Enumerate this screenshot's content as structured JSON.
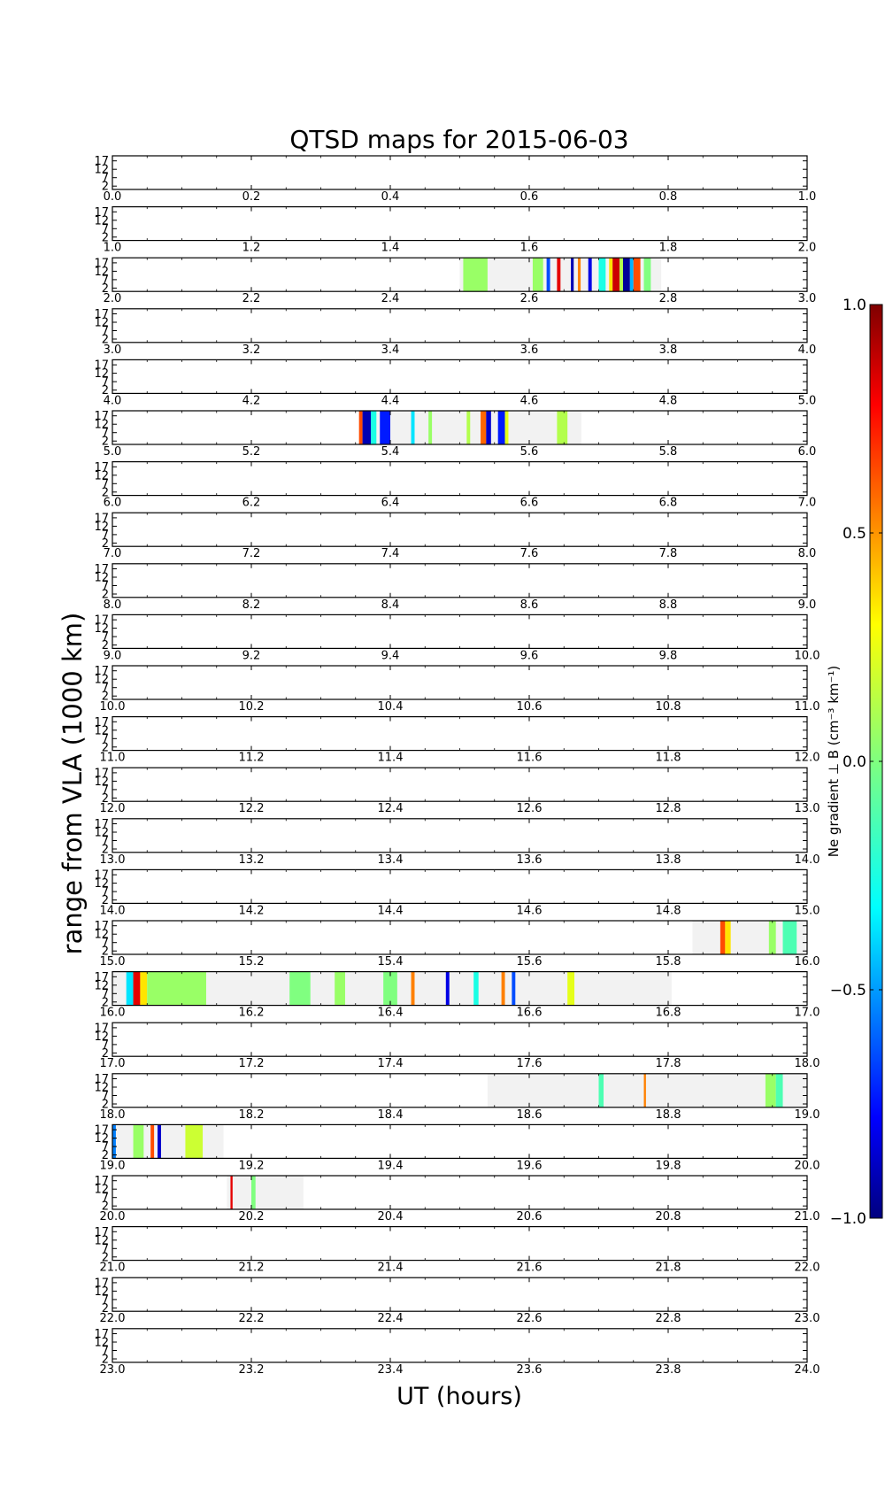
{
  "chart_data": {
    "type": "heatmap",
    "title": "QTSD maps for 2015-06-03",
    "xlabel": "UT (hours)",
    "ylabel": "range from VLA (1000 km)",
    "yticks": [
      "17",
      "12",
      "7",
      "2"
    ],
    "ylim": [
      0,
      20
    ],
    "grid": false,
    "colorbar": {
      "label": "Ne gradient ⊥ B (cm⁻³ km⁻¹)",
      "range": [
        -1.0,
        1.0
      ],
      "ticks": [
        "1.0",
        "0.5",
        "0.0",
        "−0.5",
        "−1.0"
      ],
      "colormap": "jet",
      "colors": [
        "#00007f",
        "#0000ff",
        "#007fff",
        "#00ffff",
        "#7fff7f",
        "#ffff00",
        "#ff7f00",
        "#ff0000",
        "#7f0000"
      ]
    },
    "panels": [
      {
        "hour": 0,
        "xticks": [
          "0.0",
          "0.2",
          "0.4",
          "0.6",
          "0.8",
          "1.0"
        ],
        "coverage": [],
        "features": []
      },
      {
        "hour": 1,
        "xticks": [
          "1.0",
          "1.2",
          "1.4",
          "1.6",
          "1.8",
          "2.0"
        ],
        "coverage": [],
        "features": []
      },
      {
        "hour": 2,
        "xticks": [
          "2.0",
          "2.2",
          "2.4",
          "2.6",
          "2.8",
          "3.0"
        ],
        "coverage": [
          [
            2.5,
            2.79
          ]
        ],
        "features": [
          {
            "t0": 2.505,
            "t1": 2.54,
            "v": 0.05
          },
          {
            "t0": 2.605,
            "t1": 2.62,
            "v": 0.05
          },
          {
            "t0": 2.625,
            "t1": 2.63,
            "v": -0.6
          },
          {
            "t0": 2.64,
            "t1": 2.645,
            "v": 0.8
          },
          {
            "t0": 2.66,
            "t1": 2.664,
            "v": -0.9
          },
          {
            "t0": 2.67,
            "t1": 2.674,
            "v": 0.5
          },
          {
            "t0": 2.685,
            "t1": 2.69,
            "v": -0.8
          },
          {
            "t0": 2.7,
            "t1": 2.71,
            "v": -0.2
          },
          {
            "t0": 2.715,
            "t1": 2.72,
            "v": 0.3
          },
          {
            "t0": 2.72,
            "t1": 2.73,
            "v": 0.85
          },
          {
            "t0": 2.73,
            "t1": 2.735,
            "v": 0.1
          },
          {
            "t0": 2.735,
            "t1": 2.745,
            "v": -0.95
          },
          {
            "t0": 2.745,
            "t1": 2.75,
            "v": -0.4
          },
          {
            "t0": 2.75,
            "t1": 2.76,
            "v": 0.6
          },
          {
            "t0": 2.765,
            "t1": 2.775,
            "v": 0.0
          }
        ]
      },
      {
        "hour": 3,
        "xticks": [
          "3.0",
          "3.2",
          "3.4",
          "3.6",
          "3.8",
          "4.0"
        ],
        "coverage": [],
        "features": []
      },
      {
        "hour": 4,
        "xticks": [
          "4.0",
          "4.2",
          "4.4",
          "4.6",
          "4.8",
          "5.0"
        ],
        "coverage": [],
        "features": []
      },
      {
        "hour": 5,
        "xticks": [
          "5.0",
          "5.2",
          "5.4",
          "5.6",
          "5.8",
          "6.0"
        ],
        "coverage": [
          [
            5.355,
            5.675
          ]
        ],
        "features": [
          {
            "t0": 5.355,
            "t1": 5.36,
            "v": 0.6
          },
          {
            "t0": 5.36,
            "t1": 5.372,
            "v": -0.9
          },
          {
            "t0": 5.372,
            "t1": 5.38,
            "v": -0.2
          },
          {
            "t0": 5.385,
            "t1": 5.4,
            "v": -0.7
          },
          {
            "t0": 5.43,
            "t1": 5.435,
            "v": -0.3
          },
          {
            "t0": 5.455,
            "t1": 5.46,
            "v": 0.05
          },
          {
            "t0": 5.51,
            "t1": 5.515,
            "v": 0.1
          },
          {
            "t0": 5.53,
            "t1": 5.538,
            "v": 0.55
          },
          {
            "t0": 5.538,
            "t1": 5.545,
            "v": -0.85
          },
          {
            "t0": 5.555,
            "t1": 5.565,
            "v": -0.7
          },
          {
            "t0": 5.565,
            "t1": 5.57,
            "v": 0.2
          },
          {
            "t0": 5.64,
            "t1": 5.655,
            "v": 0.1
          }
        ]
      },
      {
        "hour": 6,
        "xticks": [
          "6.0",
          "6.2",
          "6.4",
          "6.6",
          "6.8",
          "7.0"
        ],
        "coverage": [],
        "features": []
      },
      {
        "hour": 7,
        "xticks": [
          "7.0",
          "7.2",
          "7.4",
          "7.6",
          "7.8",
          "8.0"
        ],
        "coverage": [],
        "features": []
      },
      {
        "hour": 8,
        "xticks": [
          "8.0",
          "8.2",
          "8.4",
          "8.6",
          "8.8",
          "9.0"
        ],
        "coverage": [],
        "features": []
      },
      {
        "hour": 9,
        "xticks": [
          "9.0",
          "9.2",
          "9.4",
          "9.6",
          "9.8",
          "10.0"
        ],
        "coverage": [],
        "features": []
      },
      {
        "hour": 10,
        "xticks": [
          "10.0",
          "10.2",
          "10.4",
          "10.6",
          "10.8",
          "11.0"
        ],
        "coverage": [],
        "features": []
      },
      {
        "hour": 11,
        "xticks": [
          "11.0",
          "11.2",
          "11.4",
          "11.6",
          "11.8",
          "12.0"
        ],
        "coverage": [],
        "features": []
      },
      {
        "hour": 12,
        "xticks": [
          "12.0",
          "12.2",
          "12.4",
          "12.6",
          "12.8",
          "13.0"
        ],
        "coverage": [],
        "features": []
      },
      {
        "hour": 13,
        "xticks": [
          "13.0",
          "13.2",
          "13.4",
          "13.6",
          "13.8",
          "14.0"
        ],
        "coverage": [],
        "features": []
      },
      {
        "hour": 14,
        "xticks": [
          "14.0",
          "14.2",
          "14.4",
          "14.6",
          "14.8",
          "15.0"
        ],
        "coverage": [],
        "features": []
      },
      {
        "hour": 15,
        "xticks": [
          "15.0",
          "15.2",
          "15.4",
          "15.6",
          "15.8",
          "16.0"
        ],
        "coverage": [
          [
            15.835,
            16.0
          ]
        ],
        "features": [
          {
            "t0": 15.875,
            "t1": 15.882,
            "v": 0.6
          },
          {
            "t0": 15.882,
            "t1": 15.89,
            "v": 0.3
          },
          {
            "t0": 15.945,
            "t1": 15.955,
            "v": 0.05
          },
          {
            "t0": 15.965,
            "t1": 15.985,
            "v": -0.1
          }
        ]
      },
      {
        "hour": 16,
        "xticks": [
          "16.0",
          "16.2",
          "16.4",
          "16.6",
          "16.8",
          "17.0"
        ],
        "coverage": [
          [
            16.0,
            16.805
          ]
        ],
        "features": [
          {
            "t0": 16.02,
            "t1": 16.03,
            "v": -0.3
          },
          {
            "t0": 16.03,
            "t1": 16.04,
            "v": 0.8
          },
          {
            "t0": 16.04,
            "t1": 16.05,
            "v": 0.3
          },
          {
            "t0": 16.05,
            "t1": 16.135,
            "v": 0.05
          },
          {
            "t0": 16.255,
            "t1": 16.285,
            "v": 0.0
          },
          {
            "t0": 16.32,
            "t1": 16.335,
            "v": 0.05
          },
          {
            "t0": 16.39,
            "t1": 16.41,
            "v": 0.0
          },
          {
            "t0": 16.43,
            "t1": 16.435,
            "v": 0.5
          },
          {
            "t0": 16.48,
            "t1": 16.485,
            "v": -0.8
          },
          {
            "t0": 16.52,
            "t1": 16.527,
            "v": -0.2
          },
          {
            "t0": 16.56,
            "t1": 16.565,
            "v": 0.5
          },
          {
            "t0": 16.575,
            "t1": 16.58,
            "v": -0.6
          },
          {
            "t0": 16.655,
            "t1": 16.665,
            "v": 0.2
          }
        ]
      },
      {
        "hour": 17,
        "xticks": [
          "17.0",
          "17.2",
          "17.4",
          "17.6",
          "17.8",
          "18.0"
        ],
        "coverage": [],
        "features": []
      },
      {
        "hour": 18,
        "xticks": [
          "18.0",
          "18.2",
          "18.4",
          "18.6",
          "18.8",
          "19.0"
        ],
        "coverage": [
          [
            18.54,
            19.0
          ]
        ],
        "features": [
          {
            "t0": 18.7,
            "t1": 18.707,
            "v": -0.1
          },
          {
            "t0": 18.765,
            "t1": 18.768,
            "v": 0.5
          },
          {
            "t0": 18.94,
            "t1": 18.955,
            "v": 0.05
          },
          {
            "t0": 18.955,
            "t1": 18.965,
            "v": -0.1
          }
        ]
      },
      {
        "hour": 19,
        "xticks": [
          "19.0",
          "19.2",
          "19.4",
          "19.6",
          "19.8",
          "20.0"
        ],
        "coverage": [
          [
            19.0,
            19.16
          ]
        ],
        "features": [
          {
            "t0": 19.0,
            "t1": 19.005,
            "v": -0.5
          },
          {
            "t0": 19.03,
            "t1": 19.045,
            "v": 0.05
          },
          {
            "t0": 19.055,
            "t1": 19.06,
            "v": 0.6
          },
          {
            "t0": 19.065,
            "t1": 19.07,
            "v": -0.85
          },
          {
            "t0": 19.105,
            "t1": 19.13,
            "v": 0.15
          }
        ]
      },
      {
        "hour": 20,
        "xticks": [
          "20.0",
          "20.2",
          "20.4",
          "20.6",
          "20.8",
          "21.0"
        ],
        "coverage": [
          [
            20.165,
            20.275
          ]
        ],
        "features": [
          {
            "t0": 20.17,
            "t1": 20.173,
            "v": 0.8
          },
          {
            "t0": 20.2,
            "t1": 20.206,
            "v": 0.0
          }
        ]
      },
      {
        "hour": 21,
        "xticks": [
          "21.0",
          "21.2",
          "21.4",
          "21.6",
          "21.8",
          "22.0"
        ],
        "coverage": [],
        "features": []
      },
      {
        "hour": 22,
        "xticks": [
          "22.0",
          "22.2",
          "22.4",
          "22.6",
          "22.8",
          "23.0"
        ],
        "coverage": [],
        "features": []
      },
      {
        "hour": 23,
        "xticks": [
          "23.0",
          "23.2",
          "23.4",
          "23.6",
          "23.8",
          "24.0"
        ],
        "coverage": [],
        "features": []
      }
    ]
  }
}
